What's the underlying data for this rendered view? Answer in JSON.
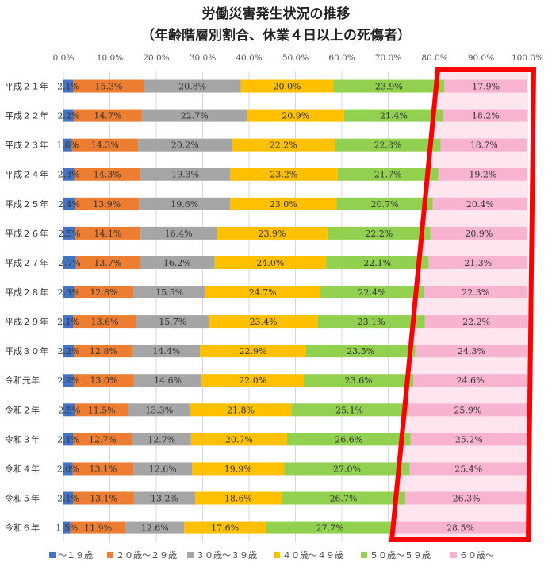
{
  "chart_data": {
    "type": "bar",
    "orientation": "horizontal",
    "stacked": "100%",
    "title": "労働災害発生状況の推移",
    "subtitle": "（年齢階層別割合、休業４日以上の死傷者）",
    "xlim": [
      0,
      100
    ],
    "x_ticks": [
      "0.0%",
      "10.0%",
      "20.0%",
      "30.0%",
      "40.0%",
      "50.0%",
      "60.0%",
      "70.0%",
      "80.0%",
      "90.0%",
      "100.0%"
    ],
    "grid": true,
    "legend_position": "bottom",
    "categories": [
      "平成２１年",
      "平成２２年",
      "平成２３年",
      "平成２４年",
      "平成２５年",
      "平成２６年",
      "平成２７年",
      "平成２８年",
      "平成２９年",
      "平成３０年",
      "令和元年",
      "令和２年",
      "令和３年",
      "令和４年",
      "令和５年",
      "令和６年"
    ],
    "series": [
      {
        "name": "～１９歳",
        "color": "#4472c4",
        "values": [
          2.1,
          2.2,
          1.8,
          2.3,
          2.4,
          2.5,
          2.7,
          2.3,
          2.1,
          2.2,
          2.2,
          2.5,
          2.1,
          2.0,
          2.1,
          1.5
        ],
        "labels": [
          "2.1%",
          "2.2%",
          "1.8%",
          "2.3%",
          "2.4%",
          "2.5%",
          "2.7%",
          "2.3%",
          "2.1%",
          "2.2%",
          "2.2%",
          "2.5%",
          "2.1%",
          "2.0%",
          "2.1%",
          "1.5%"
        ]
      },
      {
        "name": "２０歳～２９歳",
        "color": "#ed7d31",
        "values": [
          15.3,
          14.7,
          14.3,
          14.3,
          13.9,
          14.1,
          13.7,
          12.8,
          13.6,
          12.8,
          13.0,
          11.5,
          12.7,
          13.1,
          13.1,
          11.9
        ],
        "labels": [
          "15.3%",
          "14.7%",
          "14.3%",
          "14.3%",
          "13.9%",
          "14.1%",
          "13.7%",
          "12.8%",
          "13.6%",
          "12.8%",
          "13.0%",
          "11.5%",
          "12.7%",
          "13.1%",
          "13.1%",
          "11.9%"
        ]
      },
      {
        "name": "３０歳～３９歳",
        "color": "#a5a5a5",
        "values": [
          20.8,
          22.7,
          20.2,
          19.3,
          19.6,
          16.4,
          16.2,
          15.5,
          15.7,
          14.4,
          14.6,
          13.3,
          12.7,
          12.6,
          13.2,
          12.6
        ],
        "labels": [
          "20.8%",
          "22.7%",
          "20.2%",
          "19.3%",
          "19.6%",
          "16.4%",
          "16.2%",
          "15.5%",
          "15.7%",
          "14.4%",
          "14.6%",
          "13.3%",
          "12.7%",
          "12.6%",
          "13.2%",
          "12.6%"
        ]
      },
      {
        "name": "４０歳～４９歳",
        "color": "#ffc000",
        "values": [
          20.0,
          20.9,
          22.2,
          23.2,
          23.0,
          23.9,
          24.0,
          24.7,
          23.4,
          22.9,
          22.0,
          21.8,
          20.7,
          19.9,
          18.6,
          17.6
        ],
        "labels": [
          "20.0%",
          "20.9%",
          "22.2%",
          "23.2%",
          "23.0%",
          "23.9%",
          "24.0%",
          "24.7%",
          "23.4%",
          "22.9%",
          "22.0%",
          "21.8%",
          "20.7%",
          "19.9%",
          "18.6%",
          "17.6%"
        ]
      },
      {
        "name": "５０歳～５９歳",
        "color": "#92d050",
        "values": [
          23.9,
          21.4,
          22.8,
          21.7,
          20.7,
          22.2,
          22.1,
          22.4,
          23.1,
          23.5,
          23.6,
          25.1,
          26.6,
          27.0,
          26.7,
          27.7
        ],
        "labels": [
          "23.9%",
          "21.4%",
          "22.8%",
          "21.7%",
          "20.7%",
          "22.2%",
          "22.1%",
          "22.4%",
          "23.1%",
          "23.5%",
          "23.6%",
          "25.1%",
          "26.6%",
          "27.0%",
          "26.7%",
          "27.7%"
        ]
      },
      {
        "name": "６０歳～",
        "color": "#f8b3d1",
        "values": [
          17.9,
          18.2,
          18.7,
          19.2,
          20.4,
          20.9,
          21.3,
          22.3,
          22.2,
          24.3,
          24.6,
          25.9,
          25.2,
          25.4,
          26.3,
          28.5
        ],
        "labels": [
          "17.9%",
          "18.2%",
          "18.7%",
          "19.2%",
          "20.4%",
          "20.9%",
          "21.3%",
          "22.3%",
          "22.2%",
          "24.3%",
          "24.6%",
          "25.9%",
          "25.2%",
          "25.4%",
          "26.3%",
          "28.5%"
        ]
      }
    ],
    "annotation": {
      "shape": "trapezoid-outline",
      "color": "#ff0000",
      "highlights_series": "６０歳～",
      "fill_color": "#ffe6ee"
    }
  }
}
